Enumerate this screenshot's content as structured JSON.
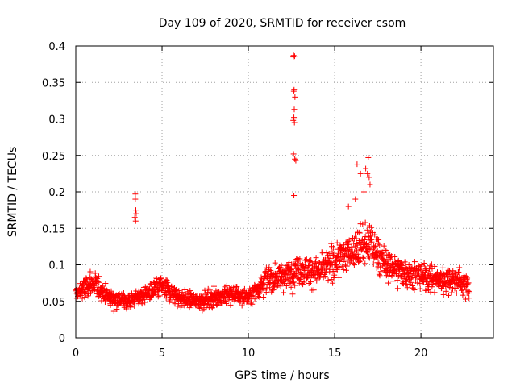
{
  "chart_data": {
    "type": "scatter",
    "title": "Day 109 of 2020, SRMTID for receiver csom",
    "xlabel": "GPS time / hours",
    "ylabel": "SRMTID / TECUs",
    "xlim": [
      0,
      24.2
    ],
    "ylim": [
      0,
      0.4
    ],
    "x_ticks": [
      0,
      5,
      10,
      15,
      20
    ],
    "x_tick_labels": [
      "0",
      "5",
      "10",
      "15",
      "20"
    ],
    "y_ticks": [
      0,
      0.05,
      0.1,
      0.15,
      0.2,
      0.25,
      0.3,
      0.35,
      0.4
    ],
    "y_tick_labels": [
      "0",
      "0.05",
      "0.1",
      "0.15",
      "0.2",
      "0.25",
      "0.3",
      "0.35",
      "0.4"
    ],
    "grid": true,
    "marker": "+",
    "color": "#ff0000",
    "series": [
      {
        "name": "SRMTID",
        "profile": [
          [
            0.0,
            0.06
          ],
          [
            1.0,
            0.075
          ],
          [
            2.0,
            0.055
          ],
          [
            3.0,
            0.05
          ],
          [
            4.0,
            0.06
          ],
          [
            5.0,
            0.07
          ],
          [
            6.0,
            0.055
          ],
          [
            7.0,
            0.05
          ],
          [
            8.0,
            0.055
          ],
          [
            9.0,
            0.06
          ],
          [
            10.0,
            0.055
          ],
          [
            11.0,
            0.08
          ],
          [
            12.0,
            0.085
          ],
          [
            13.0,
            0.095
          ],
          [
            14.0,
            0.09
          ],
          [
            15.0,
            0.105
          ],
          [
            16.0,
            0.12
          ],
          [
            17.0,
            0.13
          ],
          [
            18.0,
            0.1
          ],
          [
            19.0,
            0.09
          ],
          [
            20.0,
            0.085
          ],
          [
            21.0,
            0.08
          ],
          [
            22.0,
            0.08
          ],
          [
            22.8,
            0.07
          ]
        ],
        "x": [
          3.45,
          3.45,
          3.48,
          3.5,
          3.42,
          3.47,
          12.62,
          12.68,
          12.6,
          12.65,
          12.63,
          12.7,
          12.66,
          12.64,
          12.6,
          12.67,
          12.62,
          12.69,
          12.75,
          12.64,
          16.3,
          16.5,
          16.8,
          16.9,
          17.0,
          16.95,
          16.7,
          17.05,
          15.8,
          16.2
        ],
        "y": [
          0.197,
          0.19,
          0.175,
          0.17,
          0.165,
          0.16,
          0.387,
          0.386,
          0.385,
          0.34,
          0.338,
          0.33,
          0.313,
          0.302,
          0.298,
          0.295,
          0.252,
          0.245,
          0.243,
          0.195,
          0.238,
          0.225,
          0.232,
          0.225,
          0.22,
          0.247,
          0.2,
          0.21,
          0.18,
          0.19
        ]
      }
    ]
  }
}
